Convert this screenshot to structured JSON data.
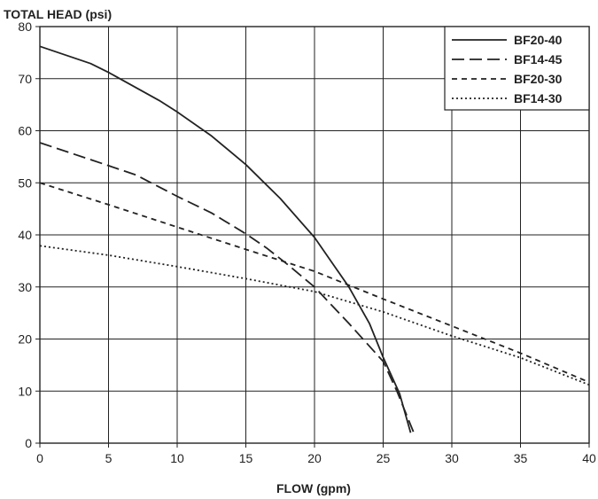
{
  "chart_data": {
    "type": "line",
    "ylabel": "TOTAL HEAD (psi)",
    "xlabel": "FLOW (gpm)",
    "xlim": [
      0,
      40
    ],
    "ylim": [
      0,
      80
    ],
    "x_ticks": [
      0,
      5,
      10,
      15,
      20,
      25,
      30,
      35,
      40
    ],
    "y_ticks": [
      0,
      10,
      20,
      30,
      40,
      50,
      60,
      70,
      80
    ],
    "grid": true,
    "legend_position": "top-right",
    "series": [
      {
        "name": "BF20-40",
        "style": "solid",
        "points": [
          [
            0,
            76.2
          ],
          [
            3.7,
            72.9
          ],
          [
            5,
            71.2
          ],
          [
            8.7,
            65.8
          ],
          [
            10,
            63.6
          ],
          [
            12.5,
            59
          ],
          [
            15,
            53.5
          ],
          [
            17.5,
            47
          ],
          [
            20,
            39.5
          ],
          [
            22.5,
            30
          ],
          [
            24,
            23
          ],
          [
            25,
            16.5
          ],
          [
            26.2,
            9.5
          ],
          [
            27,
            2
          ]
        ]
      },
      {
        "name": "BF14-45",
        "style": "dashed",
        "points": [
          [
            0,
            57.7
          ],
          [
            5,
            53.3
          ],
          [
            7,
            51.5
          ],
          [
            10,
            47.4
          ],
          [
            12.5,
            44.2
          ],
          [
            15,
            40.2
          ],
          [
            16.5,
            37.5
          ],
          [
            18,
            34.4
          ],
          [
            20,
            30
          ],
          [
            22.5,
            23
          ],
          [
            25,
            15.7
          ],
          [
            26,
            10
          ],
          [
            27.2,
            2.2
          ]
        ]
      },
      {
        "name": "BF20-30",
        "style": "short-dashed",
        "points": [
          [
            0,
            50
          ],
          [
            5,
            45.8
          ],
          [
            10,
            41.5
          ],
          [
            15,
            37.2
          ],
          [
            20,
            33
          ],
          [
            25,
            27.7
          ],
          [
            30,
            22.5
          ],
          [
            35,
            17.3
          ],
          [
            40,
            11.7
          ]
        ]
      },
      {
        "name": "BF14-30",
        "style": "dotted",
        "points": [
          [
            0,
            37.9
          ],
          [
            5,
            36.1
          ],
          [
            10,
            33.9
          ],
          [
            15,
            31.6
          ],
          [
            20,
            29.1
          ],
          [
            25,
            25.2
          ],
          [
            30,
            20.6
          ],
          [
            35,
            16.4
          ],
          [
            40,
            11.2
          ]
        ]
      }
    ]
  }
}
